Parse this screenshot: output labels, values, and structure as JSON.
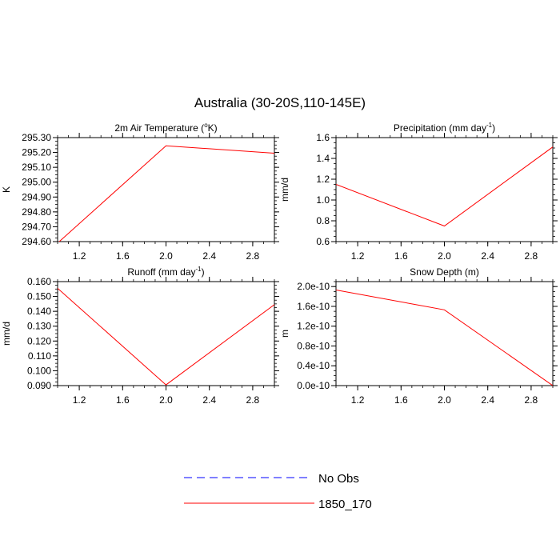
{
  "figure": {
    "title": "Australia (30-20S,110-145E)"
  },
  "legend": {
    "placement": "bottom-center",
    "entries": [
      {
        "label": "No Obs",
        "color": "#0000ff",
        "style": "dashed"
      },
      {
        "label": "1850_170",
        "color": "#ff0000",
        "style": "solid"
      }
    ]
  },
  "chart_data": [
    {
      "type": "line",
      "title_main": "2m Air Temperature (",
      "title_sup": "o",
      "title_tail": "K)",
      "ylabel": "K",
      "xlim": [
        1,
        3
      ],
      "ylim": [
        294.6,
        295.3
      ],
      "xticks": [
        1.2,
        1.6,
        2.0,
        2.4,
        2.8
      ],
      "xtick_labels": [
        "1.2",
        "1.6",
        "2.0",
        "2.4",
        "2.8"
      ],
      "yticks": [
        294.6,
        294.7,
        294.8,
        294.9,
        295.0,
        295.1,
        295.2,
        295.3
      ],
      "ytick_labels": [
        "294.60",
        "294.70",
        "294.80",
        "294.90",
        "295.00",
        "295.10",
        "295.20",
        "295.30"
      ],
      "series": [
        {
          "color": "#ff0000",
          "x": [
            1,
            2,
            3
          ],
          "y": [
            294.59,
            295.245,
            295.195
          ]
        }
      ]
    },
    {
      "type": "line",
      "title_main": "Precipitation (mm day",
      "title_sup": "-1",
      "title_tail": ")",
      "ylabel": "mm/d",
      "xlim": [
        1,
        3
      ],
      "ylim": [
        0.6,
        1.6
      ],
      "xticks": [
        1.2,
        1.6,
        2.0,
        2.4,
        2.8
      ],
      "xtick_labels": [
        "1.2",
        "1.6",
        "2.0",
        "2.4",
        "2.8"
      ],
      "yticks": [
        0.6,
        0.8,
        1.0,
        1.2,
        1.4,
        1.6
      ],
      "ytick_labels": [
        "0.6",
        "0.8",
        "1.0",
        "1.2",
        "1.4",
        "1.6"
      ],
      "series": [
        {
          "color": "#ff0000",
          "x": [
            1,
            2,
            3
          ],
          "y": [
            1.15,
            0.75,
            1.51
          ]
        }
      ]
    },
    {
      "type": "line",
      "title_main": "Runoff (mm day",
      "title_sup": "-1",
      "title_tail": ")",
      "ylabel": "mm/d",
      "xlim": [
        1,
        3
      ],
      "ylim": [
        0.09,
        0.16
      ],
      "xticks": [
        1.2,
        1.6,
        2.0,
        2.4,
        2.8
      ],
      "xtick_labels": [
        "1.2",
        "1.6",
        "2.0",
        "2.4",
        "2.8"
      ],
      "yticks": [
        0.09,
        0.1,
        0.11,
        0.12,
        0.13,
        0.14,
        0.15,
        0.16
      ],
      "ytick_labels": [
        "0.090",
        "0.100",
        "0.110",
        "0.120",
        "0.130",
        "0.140",
        "0.150",
        "0.160"
      ],
      "series": [
        {
          "color": "#ff0000",
          "x": [
            1,
            2,
            3
          ],
          "y": [
            0.1555,
            0.0905,
            0.1445
          ]
        }
      ]
    },
    {
      "type": "line",
      "title_main": "Snow Depth (m)",
      "title_sup": "",
      "title_tail": "",
      "ylabel": "m",
      "xlim": [
        1,
        3
      ],
      "ylim": [
        0,
        2.1e-10
      ],
      "xticks": [
        1.2,
        1.6,
        2.0,
        2.4,
        2.8
      ],
      "xtick_labels": [
        "1.2",
        "1.6",
        "2.0",
        "2.4",
        "2.8"
      ],
      "yticks": [
        0,
        4e-11,
        8e-11,
        1.2e-10,
        1.6e-10,
        2e-10
      ],
      "ytick_labels": [
        "0.0e-10",
        "0.4e-10",
        "0.8e-10",
        "1.2e-10",
        "1.6e-10",
        "2.0e-10"
      ],
      "series": [
        {
          "color": "#ff0000",
          "x": [
            1,
            2,
            3
          ],
          "y": [
            1.93e-10,
            1.53e-10,
            0
          ]
        }
      ]
    }
  ]
}
